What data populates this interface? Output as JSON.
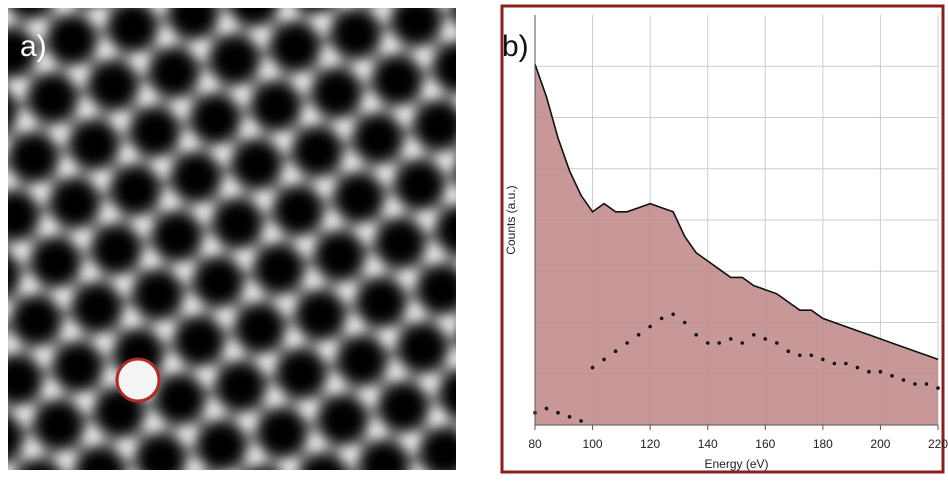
{
  "panel_a": {
    "label": "a)"
  },
  "chart_data": {
    "type": "area",
    "panel_label": "b)",
    "x_label": "Energy (eV)",
    "y_label": "Counts (a.u.)",
    "x": [
      80,
      84,
      88,
      92,
      96,
      100,
      104,
      108,
      112,
      116,
      120,
      124,
      128,
      132,
      136,
      140,
      144,
      148,
      152,
      156,
      160,
      164,
      168,
      172,
      176,
      180,
      184,
      188,
      192,
      196,
      200,
      204,
      208,
      212,
      216,
      220
    ],
    "series": [
      {
        "color": "#111111",
        "fill": "#c28c8c",
        "style": "line",
        "values": [
          88,
          80,
          70,
          62,
          56,
          52,
          54,
          52,
          52,
          53,
          54,
          53,
          52,
          46,
          42,
          40,
          38,
          36,
          36,
          34,
          33,
          32,
          30,
          28,
          28,
          26,
          25,
          24,
          23,
          22,
          21,
          20,
          19,
          18,
          17,
          16
        ]
      },
      {
        "color": "#111111",
        "style": "dots",
        "values": [
          3,
          4,
          3,
          2,
          1,
          14,
          16,
          18,
          20,
          22,
          24,
          26,
          27,
          25,
          22,
          20,
          20,
          21,
          20,
          22,
          21,
          20,
          18,
          17,
          17,
          16,
          15,
          15,
          14,
          13,
          13,
          12,
          11,
          10,
          10,
          9
        ]
      }
    ],
    "xlim": [
      80,
      220
    ],
    "xticks": [
      80,
      100,
      120,
      140,
      160,
      180,
      200,
      220
    ],
    "ylim": [
      0,
      100
    ],
    "grid": true
  }
}
